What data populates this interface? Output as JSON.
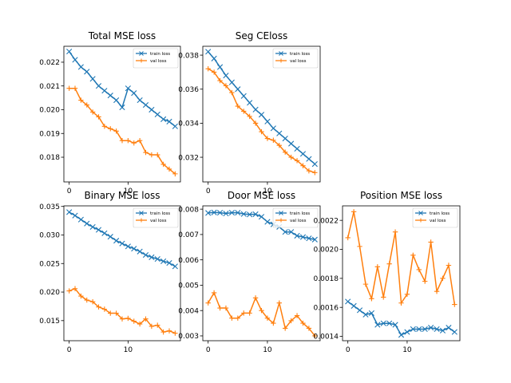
{
  "chart_data": [
    {
      "type": "line",
      "title": "Total MSE loss",
      "x": [
        0,
        1,
        2,
        3,
        4,
        5,
        6,
        7,
        8,
        9,
        10,
        11,
        12,
        13,
        14,
        15,
        16,
        17,
        18
      ],
      "xlim": [
        -0.9,
        18.9
      ],
      "xticks": [
        0,
        10
      ],
      "ylim": [
        0.01696,
        0.02267
      ],
      "yticks": [
        0.018,
        0.019,
        {
          "value": 0.02,
          "label": "0.020"
        },
        0.021,
        0.022
      ],
      "grid": false,
      "legend": "upper right",
      "series": [
        {
          "name": "train loss",
          "color": "#1f77b4",
          "marker": "x",
          "values": [
            0.02245,
            0.0221,
            0.0218,
            0.0216,
            0.0213,
            0.021,
            0.0208,
            0.0206,
            0.0204,
            0.0201,
            0.0209,
            0.0207,
            0.0204,
            0.0202,
            0.02,
            0.0198,
            0.0196,
            0.0195,
            0.0193
          ]
        },
        {
          "name": "val loss",
          "color": "#ff7f0e",
          "marker": "+",
          "values": [
            0.0209,
            0.0209,
            0.0204,
            0.0202,
            0.0199,
            0.0197,
            0.0193,
            0.0192,
            0.0191,
            0.0187,
            0.0187,
            0.0186,
            0.0187,
            0.0182,
            0.0181,
            0.0181,
            0.0177,
            0.0175,
            0.0173
          ]
        }
      ]
    },
    {
      "type": "line",
      "title": "Seg CEloss",
      "x": [
        0,
        1,
        2,
        3,
        4,
        5,
        6,
        7,
        8,
        9,
        10,
        11,
        12,
        13,
        14,
        15,
        16,
        17,
        18
      ],
      "xlim": [
        -0.9,
        18.9
      ],
      "xticks": [
        0,
        10
      ],
      "ylim": [
        0.03055,
        0.03852
      ],
      "yticks": [
        0.032,
        0.034,
        0.036,
        0.038
      ],
      "grid": false,
      "legend": "upper right",
      "series": [
        {
          "name": "train loss",
          "color": "#1f77b4",
          "marker": "x",
          "values": [
            0.0382,
            0.0378,
            0.0373,
            0.0368,
            0.0364,
            0.036,
            0.0356,
            0.0352,
            0.0348,
            0.0345,
            0.0341,
            0.0337,
            0.0334,
            0.0331,
            0.0328,
            0.0325,
            0.0322,
            0.0319,
            0.0316
          ]
        },
        {
          "name": "val loss",
          "color": "#ff7f0e",
          "marker": "+",
          "values": [
            0.0372,
            0.037,
            0.0365,
            0.0362,
            0.0358,
            0.035,
            0.0347,
            0.0344,
            0.034,
            0.0335,
            0.0331,
            0.033,
            0.0327,
            0.0323,
            0.032,
            0.0318,
            0.0315,
            0.0312,
            0.0311
          ]
        }
      ]
    },
    {
      "type": "line",
      "title": "Binary MSE loss",
      "x": [
        0,
        1,
        2,
        3,
        4,
        5,
        6,
        7,
        8,
        9,
        10,
        11,
        12,
        13,
        14,
        15,
        16,
        17,
        18
      ],
      "xlim": [
        -0.9,
        18.9
      ],
      "xticks": [
        0,
        10
      ],
      "ylim": [
        0.01148,
        0.0351
      ],
      "yticks": [
        0.015,
        {
          "value": 0.02,
          "label": "0.020"
        },
        0.025,
        {
          "value": 0.03,
          "label": "0.030"
        },
        0.035
      ],
      "grid": false,
      "legend": "upper right",
      "series": [
        {
          "name": "train loss",
          "color": "#1f77b4",
          "marker": "x",
          "values": [
            0.034,
            0.0334,
            0.0327,
            0.032,
            0.0314,
            0.0309,
            0.0303,
            0.0297,
            0.029,
            0.0285,
            0.028,
            0.0276,
            0.0271,
            0.0265,
            0.0261,
            0.0258,
            0.0254,
            0.0251,
            0.0245
          ]
        },
        {
          "name": "val loss",
          "color": "#ff7f0e",
          "marker": "+",
          "values": [
            0.0202,
            0.0206,
            0.0193,
            0.0186,
            0.0183,
            0.0174,
            0.017,
            0.0163,
            0.0163,
            0.0153,
            0.0154,
            0.0149,
            0.0144,
            0.0153,
            0.014,
            0.0142,
            0.013,
            0.0132,
            0.0128
          ]
        }
      ]
    },
    {
      "type": "line",
      "title": "Door MSE loss",
      "x": [
        0,
        1,
        2,
        3,
        4,
        5,
        6,
        7,
        8,
        9,
        10,
        11,
        12,
        13,
        14,
        15,
        16,
        17,
        18
      ],
      "xlim": [
        -0.9,
        18.9
      ],
      "xticks": [
        0,
        10
      ],
      "ylim": [
        0.00281,
        0.00813
      ],
      "yticks": [
        0.003,
        0.004,
        0.005,
        0.006,
        0.007,
        0.008
      ],
      "grid": false,
      "legend": "upper right",
      "series": [
        {
          "name": "train loss",
          "color": "#1f77b4",
          "marker": "x",
          "values": [
            0.00785,
            0.00787,
            0.00786,
            0.00783,
            0.00786,
            0.00786,
            0.00781,
            0.00779,
            0.0078,
            0.0077,
            0.0075,
            0.0074,
            0.0073,
            0.0071,
            0.0071,
            0.00695,
            0.0069,
            0.00685,
            0.0068
          ]
        },
        {
          "name": "val loss",
          "color": "#ff7f0e",
          "marker": "+",
          "values": [
            0.0043,
            0.0047,
            0.0041,
            0.0041,
            0.0037,
            0.0037,
            0.0039,
            0.0039,
            0.0045,
            0.004,
            0.0037,
            0.0035,
            0.0043,
            0.0033,
            0.0036,
            0.0038,
            0.0035,
            0.0033,
            0.003
          ]
        }
      ]
    },
    {
      "type": "line",
      "title": "Position MSE loss",
      "x": [
        0,
        1,
        2,
        3,
        4,
        5,
        6,
        7,
        8,
        9,
        10,
        11,
        12,
        13,
        14,
        15,
        16,
        17,
        18
      ],
      "xlim": [
        -0.9,
        18.9
      ],
      "xticks": [
        0,
        10
      ],
      "ylim": [
        0.00137,
        0.0023
      ],
      "yticks": [
        0.0014,
        0.0016,
        0.0018,
        {
          "value": 0.002,
          "label": "0.0020"
        },
        0.0022
      ],
      "grid": false,
      "legend": "upper right",
      "series": [
        {
          "name": "train loss",
          "color": "#1f77b4",
          "marker": "x",
          "values": [
            0.00164,
            0.00161,
            0.00158,
            0.00155,
            0.00156,
            0.00148,
            0.00149,
            0.00149,
            0.00148,
            0.00141,
            0.00143,
            0.00145,
            0.00145,
            0.00145,
            0.00146,
            0.00145,
            0.00144,
            0.00146,
            0.00143
          ]
        },
        {
          "name": "val loss",
          "color": "#ff7f0e",
          "marker": "+",
          "values": [
            0.00208,
            0.00226,
            0.00202,
            0.00176,
            0.00166,
            0.00188,
            0.00167,
            0.0019,
            0.00212,
            0.00163,
            0.00169,
            0.00196,
            0.00186,
            0.00178,
            0.00205,
            0.00171,
            0.0018,
            0.00189,
            0.00162
          ]
        }
      ]
    }
  ]
}
